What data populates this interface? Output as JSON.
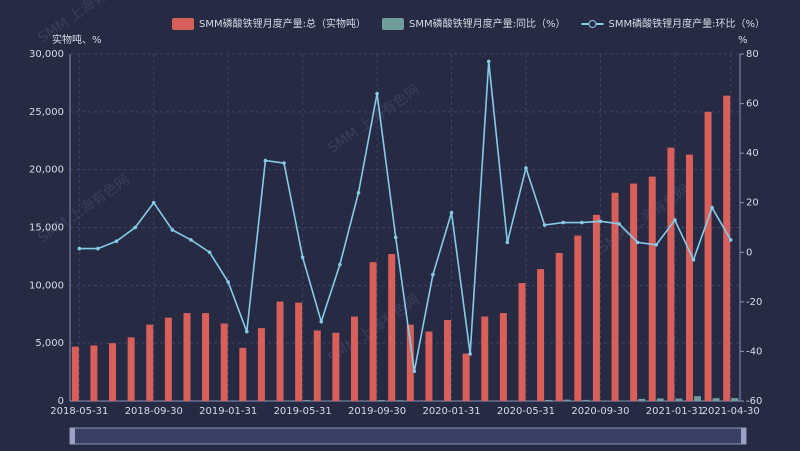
{
  "chart_data": {
    "type": "bar",
    "watermark": "SMM 上海有色网",
    "y_axis_label": "实物吨、%",
    "y2_axis_label": "%",
    "categories": [
      "2018-05-31",
      null,
      null,
      null,
      "2018-09-30",
      null,
      null,
      null,
      "2019-01-31",
      null,
      null,
      null,
      "2019-05-31",
      null,
      null,
      null,
      "2019-09-30",
      null,
      null,
      null,
      "2020-01-31",
      null,
      null,
      null,
      "2020-05-31",
      null,
      null,
      null,
      "2020-09-30",
      null,
      null,
      null,
      "2021-01-31",
      null,
      null,
      "2021-04-30"
    ],
    "ylim": [
      0,
      30000
    ],
    "yticks": [
      0,
      {
        "value": 5000,
        "label": "5,000"
      },
      {
        "value": 10000,
        "label": "10,000"
      },
      {
        "value": 15000,
        "label": "15,000"
      },
      {
        "value": 20000,
        "label": "20,000"
      },
      {
        "value": 25000,
        "label": "25,000"
      },
      {
        "value": 30000,
        "label": "30,000"
      }
    ],
    "y2lim": [
      -60,
      80
    ],
    "y2ticks": [
      -60,
      -40,
      -20,
      0,
      20,
      40,
      60,
      80
    ],
    "grid": true,
    "legend_position": "top",
    "series": [
      {
        "name": "SMM磷酸铁锂月度产量:总（实物吨）",
        "color": "#d9605a",
        "kind": "bar",
        "values": [
          4700,
          4800,
          5000,
          5500,
          6600,
          7200,
          7600,
          7600,
          6700,
          4600,
          6300,
          8600,
          8500,
          6100,
          5900,
          7300,
          12000,
          12700,
          6600,
          6000,
          7000,
          4100,
          7300,
          7600,
          10200,
          11400,
          12800,
          14300,
          16100,
          18000,
          18800,
          19400,
          21900,
          21300,
          25000,
          26400
        ]
      },
      {
        "name": "SMM磷酸铁锂月度产量:同比（%）",
        "color": "#6f9e9b",
        "kind": "bar",
        "values": [
          null,
          null,
          null,
          null,
          null,
          null,
          null,
          null,
          null,
          null,
          null,
          null,
          81,
          24,
          11,
          34,
          82,
          67,
          -13,
          -21,
          4,
          -11,
          16,
          -12,
          20,
          87,
          117,
          96,
          34,
          42,
          185,
          224,
          213,
          418,
          243,
          250
        ]
      },
      {
        "name": "SMM磷酸铁锂月度产量:环比（%）",
        "color": "#86cbe8",
        "kind": "line",
        "axis": "y2",
        "values": [
          1.5,
          1.5,
          4.5,
          10,
          20,
          9,
          5,
          0,
          -12,
          -32,
          37,
          36,
          -2,
          -28,
          -5,
          24,
          64,
          6,
          -48,
          -9,
          16,
          -41,
          77,
          4,
          34,
          11,
          12,
          12,
          12.5,
          11.5,
          4,
          3,
          13,
          -3,
          18,
          5
        ]
      }
    ]
  }
}
